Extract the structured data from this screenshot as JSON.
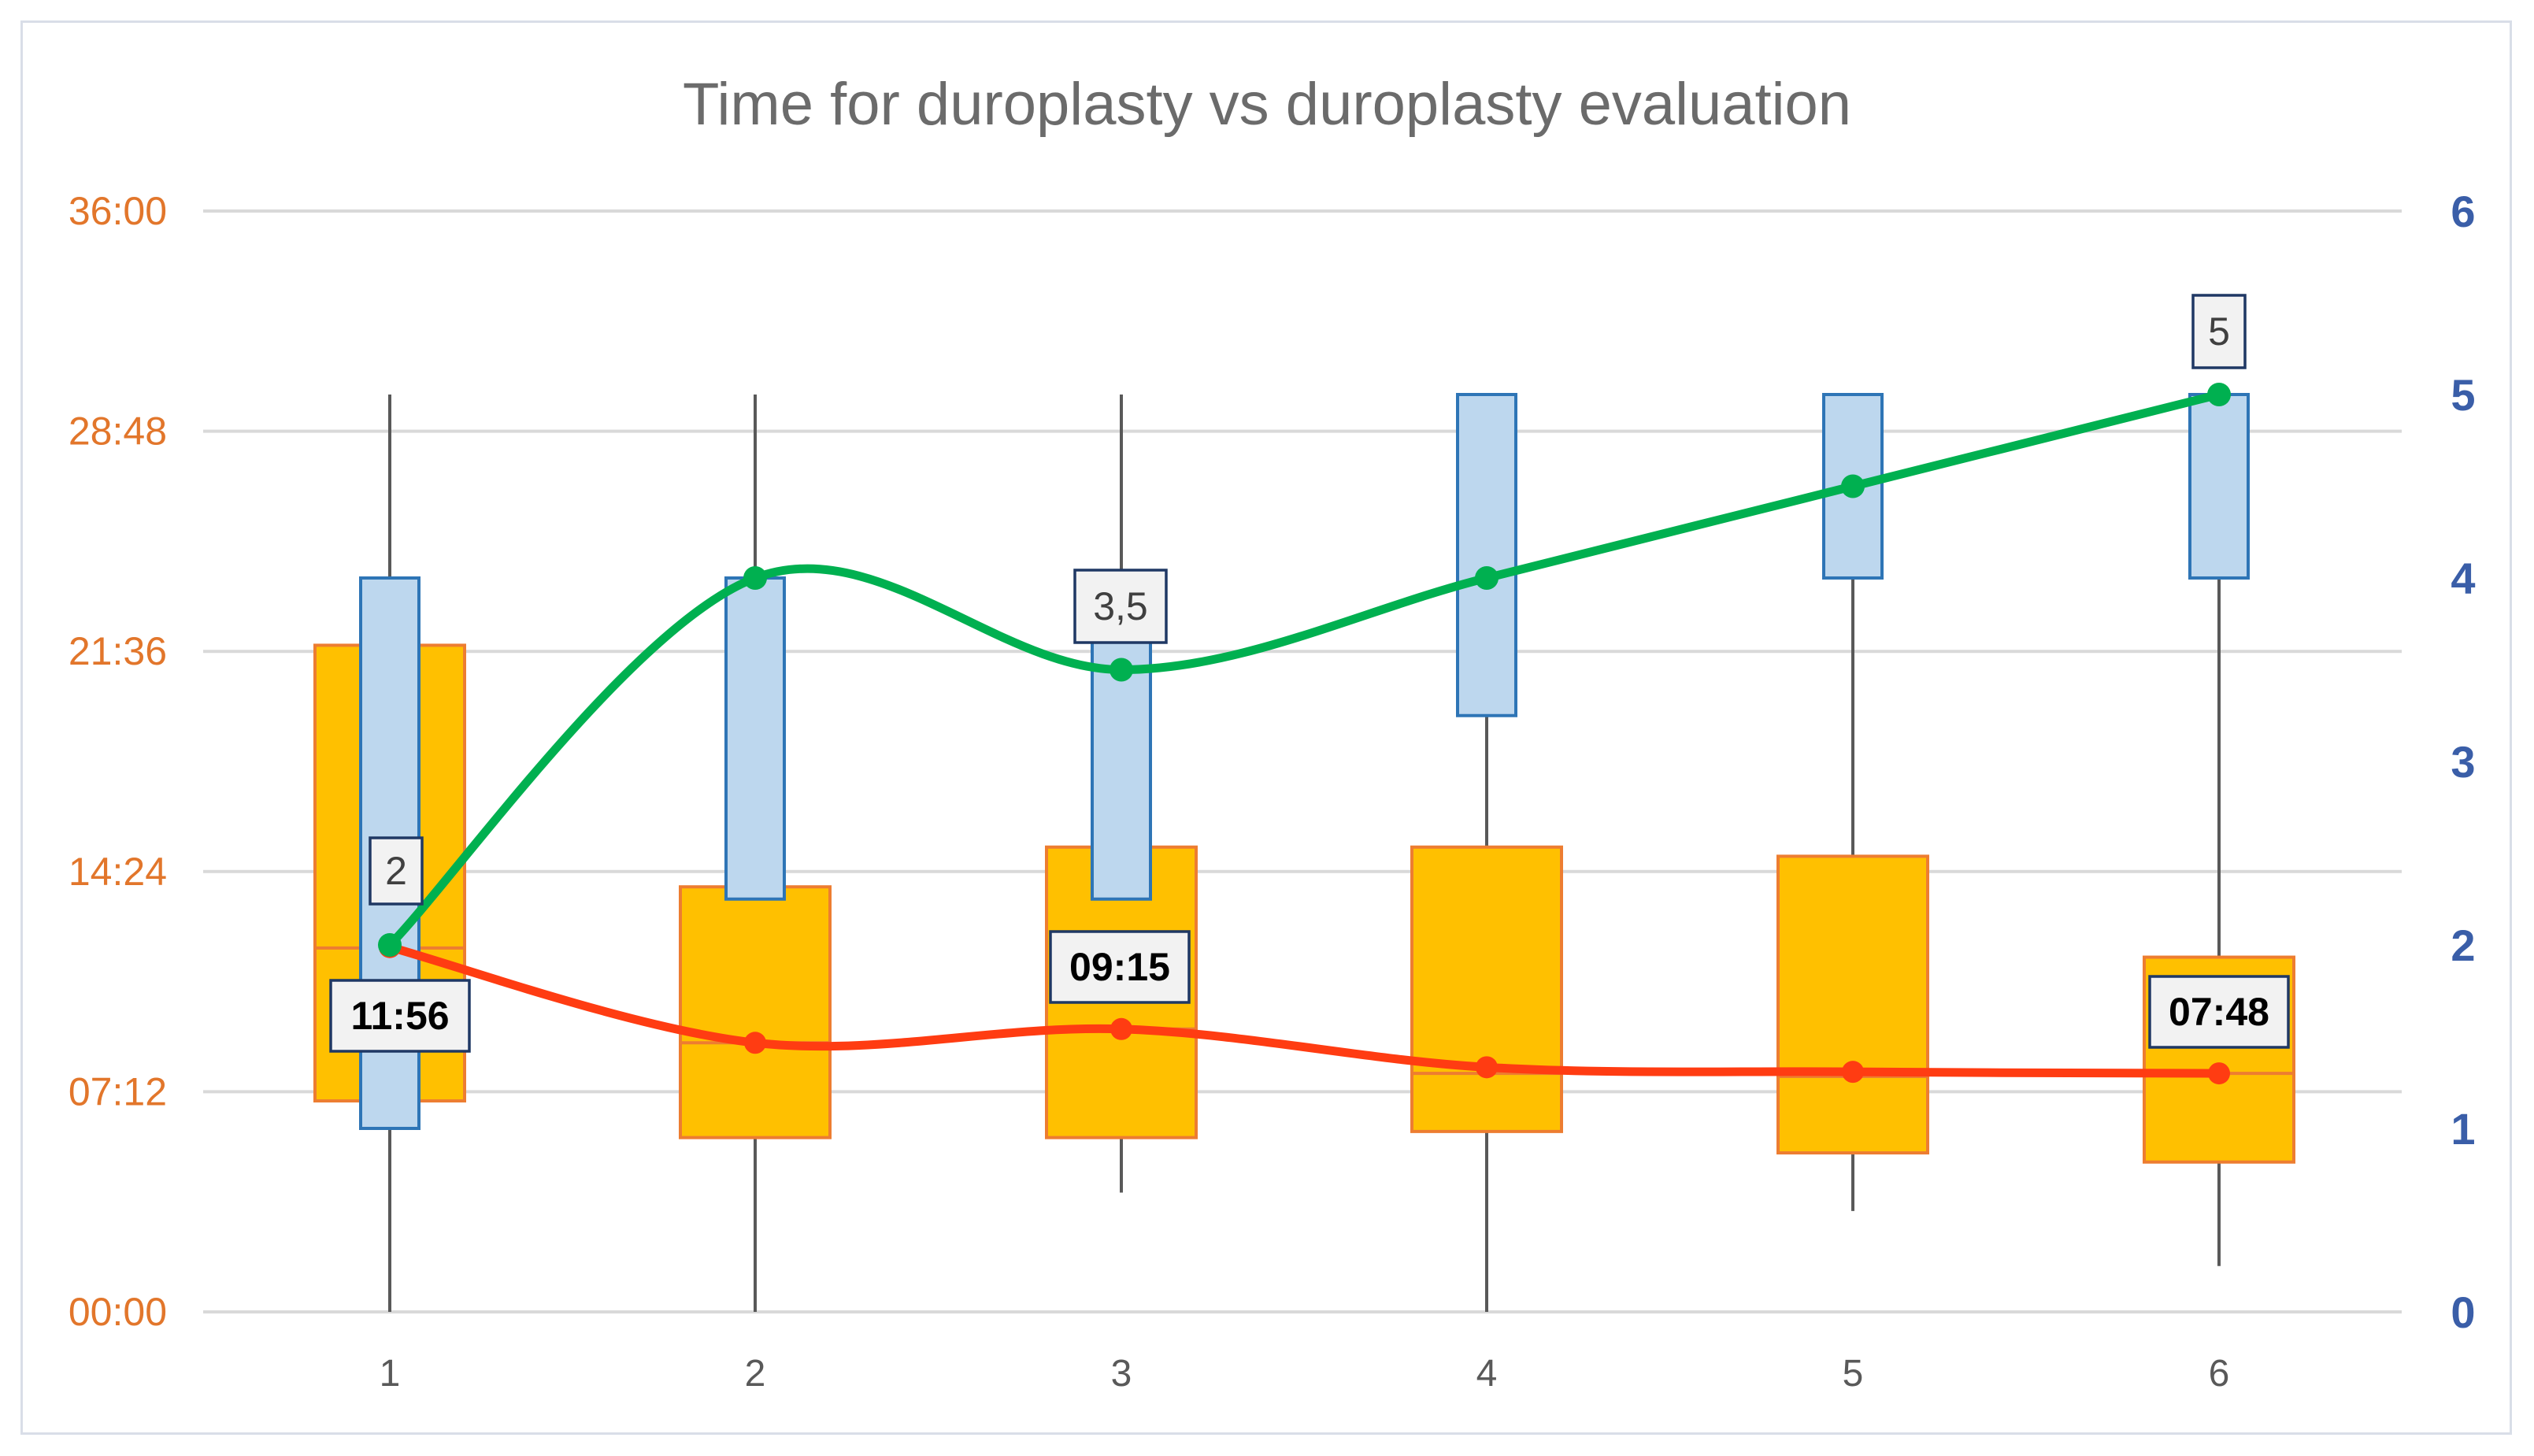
{
  "chart_data": {
    "type": "box",
    "title": "Time for duroplasty vs duroplasty evaluation",
    "categories": [
      "1",
      "2",
      "3",
      "4",
      "5",
      "6"
    ],
    "y_left": {
      "ticks": [
        "00:00",
        "07:12",
        "14:24",
        "21:36",
        "28:48",
        "36:00"
      ],
      "tick_minutes": [
        0,
        7.2,
        14.4,
        21.6,
        28.8,
        36
      ],
      "range_minutes": [
        0,
        36
      ]
    },
    "y_right": {
      "ticks": [
        "0",
        "1",
        "2",
        "3",
        "4",
        "5",
        "6"
      ],
      "range": [
        0,
        6
      ]
    },
    "grid": true,
    "series": [
      {
        "name": "Time for duroplasty",
        "axis": "left",
        "units": "minutes",
        "box_color": "#ffc000",
        "box_edge": "#ed7d31",
        "mean_line_color": "#ff3c12",
        "boxes": [
          {
            "q1": 6.9,
            "median": 11.9,
            "q3": 21.8
          },
          {
            "q1": 5.7,
            "median": 8.8,
            "q3": 13.9
          },
          {
            "q1": 5.7,
            "median": 9.25,
            "q3": 15.2
          },
          {
            "q1": 5.9,
            "median": 7.8,
            "q3": 15.2
          },
          {
            "q1": 5.2,
            "median": 7.7,
            "q3": 14.9
          },
          {
            "q1": 4.9,
            "median": 7.8,
            "q3": 11.6
          }
        ],
        "means": [
          11.93,
          8.8,
          9.25,
          8.0,
          7.85,
          7.8
        ],
        "labels": [
          "11:56",
          "",
          "09:15",
          "",
          "",
          "07:48"
        ]
      },
      {
        "name": "Duroplasty evaluation",
        "axis": "right",
        "units": "score",
        "box_color": "#bdd7ee",
        "box_edge": "#2e75b6",
        "mean_line_color": "#00b050",
        "boxes": [
          {
            "min": 0,
            "q1": 1,
            "q3": 4,
            "max": 5
          },
          {
            "min": 0,
            "q1": 2.25,
            "q3": 4,
            "max": 5
          },
          {
            "min": 0.65,
            "q1": 2.25,
            "q3": 3.65,
            "max": 5
          },
          {
            "min": 0,
            "q1": 3.25,
            "q3": 5,
            "max": 5
          },
          {
            "min": 0.55,
            "q1": 4,
            "q3": 5,
            "max": 5
          },
          {
            "min": 0.25,
            "q1": 4,
            "q3": 5,
            "max": 5
          }
        ],
        "means": [
          2,
          4,
          3.5,
          4,
          4.5,
          5
        ],
        "labels": [
          "2",
          "",
          "3,5",
          "",
          "",
          "5"
        ]
      }
    ]
  }
}
